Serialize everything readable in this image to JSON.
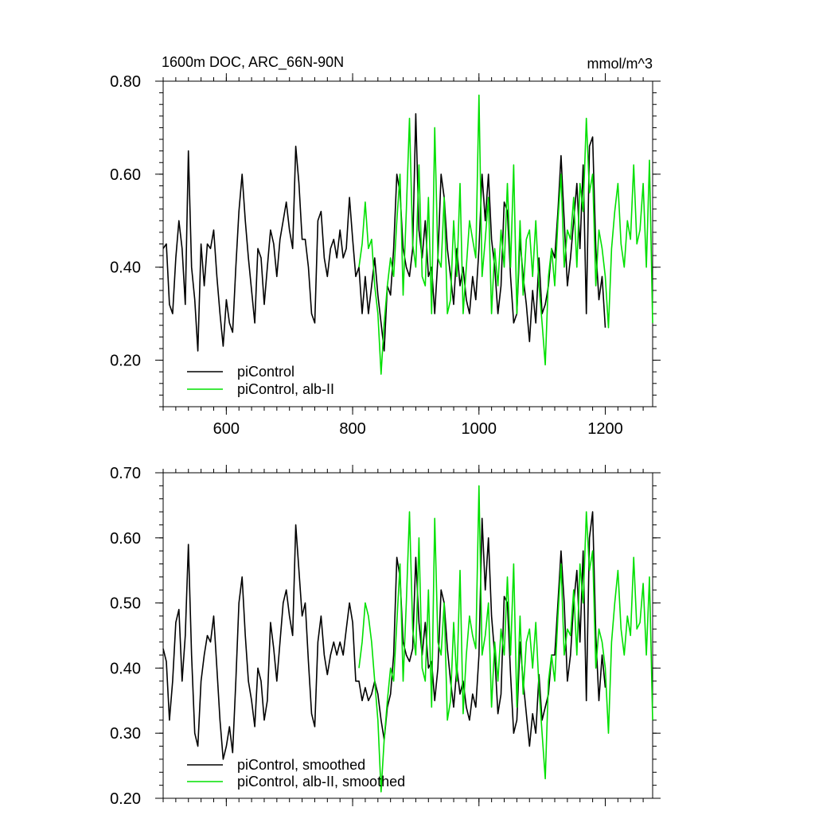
{
  "colors": {
    "series1": "#000000",
    "series2": "#00e000"
  },
  "chart_data": [
    {
      "type": "line",
      "title": "1600m DOC, ARC_66N-90N",
      "units": "mmol/m^3",
      "xlim": [
        500,
        1275
      ],
      "ylim": [
        0.1,
        0.8
      ],
      "xticks": [
        600,
        800,
        1000,
        1200
      ],
      "xtick_labels": [
        "600",
        "800",
        "1000",
        "1200"
      ],
      "yticks": [
        0.2,
        0.4,
        0.6,
        0.8
      ],
      "ytick_labels": [
        "0.20",
        "0.40",
        "0.60",
        "0.80"
      ],
      "legend_position": "bottom-left",
      "series": [
        {
          "name": "piControl",
          "color": "#000000",
          "x": [
            500,
            505,
            510,
            515,
            520,
            525,
            530,
            535,
            540,
            545,
            550,
            555,
            560,
            565,
            570,
            575,
            580,
            585,
            590,
            595,
            600,
            605,
            610,
            615,
            620,
            625,
            630,
            635,
            640,
            645,
            650,
            655,
            660,
            665,
            670,
            675,
            680,
            685,
            690,
            695,
            700,
            705,
            710,
            715,
            720,
            725,
            730,
            735,
            740,
            745,
            750,
            755,
            760,
            765,
            770,
            775,
            780,
            785,
            790,
            795,
            800,
            805,
            810,
            815,
            820,
            825,
            830,
            835,
            840,
            845,
            850,
            855,
            860,
            865,
            870,
            875,
            880,
            885,
            890,
            895,
            900,
            905,
            910,
            915,
            920,
            925,
            930,
            935,
            940,
            945,
            950,
            955,
            960,
            965,
            970,
            975,
            980,
            985,
            990,
            995,
            1000,
            1005,
            1010,
            1015,
            1020,
            1025,
            1030,
            1035,
            1040,
            1045,
            1050,
            1055,
            1060,
            1065,
            1070,
            1075,
            1080,
            1085,
            1090,
            1095,
            1100,
            1105,
            1110,
            1115,
            1120,
            1125,
            1130,
            1135,
            1140,
            1145,
            1150,
            1155,
            1160,
            1165,
            1170,
            1175,
            1180,
            1185,
            1190,
            1195,
            1200
          ],
          "y": [
            0.44,
            0.45,
            0.32,
            0.3,
            0.42,
            0.5,
            0.44,
            0.32,
            0.65,
            0.4,
            0.33,
            0.22,
            0.45,
            0.36,
            0.45,
            0.44,
            0.48,
            0.38,
            0.3,
            0.23,
            0.33,
            0.28,
            0.26,
            0.4,
            0.52,
            0.6,
            0.5,
            0.42,
            0.35,
            0.28,
            0.44,
            0.42,
            0.32,
            0.4,
            0.48,
            0.45,
            0.38,
            0.46,
            0.5,
            0.54,
            0.48,
            0.44,
            0.66,
            0.58,
            0.46,
            0.46,
            0.4,
            0.3,
            0.28,
            0.5,
            0.52,
            0.42,
            0.38,
            0.44,
            0.46,
            0.42,
            0.48,
            0.42,
            0.44,
            0.55,
            0.46,
            0.38,
            0.4,
            0.3,
            0.38,
            0.3,
            0.36,
            0.42,
            0.34,
            0.28,
            0.22,
            0.36,
            0.34,
            0.44,
            0.6,
            0.56,
            0.44,
            0.4,
            0.38,
            0.44,
            0.73,
            0.48,
            0.42,
            0.5,
            0.38,
            0.4,
            0.3,
            0.42,
            0.6,
            0.55,
            0.44,
            0.38,
            0.32,
            0.44,
            0.36,
            0.4,
            0.33,
            0.3,
            0.38,
            0.33,
            0.44,
            0.6,
            0.5,
            0.6,
            0.46,
            0.4,
            0.3,
            0.36,
            0.54,
            0.52,
            0.38,
            0.28,
            0.3,
            0.46,
            0.38,
            0.32,
            0.24,
            0.35,
            0.28,
            0.42,
            0.3,
            0.32,
            0.36,
            0.44,
            0.42,
            0.52,
            0.64,
            0.5,
            0.36,
            0.42,
            0.5,
            0.58,
            0.44,
            0.62,
            0.3,
            0.66,
            0.68,
            0.44,
            0.33,
            0.38,
            0.27
          ]
        },
        {
          "name": "piControl, alb-II",
          "color": "#00e000",
          "x": [
            810,
            815,
            820,
            825,
            830,
            835,
            840,
            845,
            850,
            855,
            860,
            865,
            870,
            875,
            880,
            885,
            890,
            895,
            900,
            905,
            910,
            915,
            920,
            925,
            930,
            935,
            940,
            945,
            950,
            955,
            960,
            965,
            970,
            975,
            980,
            985,
            990,
            995,
            1000,
            1005,
            1010,
            1015,
            1020,
            1025,
            1030,
            1035,
            1040,
            1045,
            1050,
            1055,
            1060,
            1065,
            1070,
            1075,
            1080,
            1085,
            1090,
            1095,
            1100,
            1105,
            1110,
            1115,
            1120,
            1125,
            1130,
            1135,
            1140,
            1145,
            1150,
            1155,
            1160,
            1165,
            1170,
            1175,
            1180,
            1185,
            1190,
            1195,
            1200,
            1205,
            1210,
            1215,
            1220,
            1225,
            1230,
            1235,
            1240,
            1245,
            1250,
            1255,
            1260,
            1265,
            1270,
            1275
          ],
          "y": [
            0.4,
            0.45,
            0.54,
            0.44,
            0.46,
            0.36,
            0.3,
            0.17,
            0.28,
            0.36,
            0.42,
            0.38,
            0.5,
            0.6,
            0.34,
            0.52,
            0.72,
            0.45,
            0.4,
            0.62,
            0.38,
            0.36,
            0.55,
            0.3,
            0.7,
            0.42,
            0.4,
            0.55,
            0.3,
            0.33,
            0.5,
            0.38,
            0.58,
            0.3,
            0.4,
            0.5,
            0.46,
            0.42,
            0.77,
            0.38,
            0.46,
            0.55,
            0.3,
            0.44,
            0.36,
            0.48,
            0.4,
            0.58,
            0.4,
            0.62,
            0.3,
            0.5,
            0.34,
            0.46,
            0.48,
            0.38,
            0.5,
            0.36,
            0.28,
            0.19,
            0.38,
            0.44,
            0.36,
            0.5,
            0.6,
            0.4,
            0.48,
            0.46,
            0.55,
            0.4,
            0.58,
            0.52,
            0.72,
            0.56,
            0.6,
            0.36,
            0.48,
            0.44,
            0.38,
            0.27,
            0.44,
            0.52,
            0.58,
            0.45,
            0.4,
            0.5,
            0.46,
            0.62,
            0.45,
            0.48,
            0.58,
            0.4,
            0.63,
            0.28
          ]
        }
      ]
    },
    {
      "type": "line",
      "title": "",
      "units": "",
      "xlim": [
        500,
        1275
      ],
      "ylim": [
        0.2,
        0.7
      ],
      "xticks": [
        600,
        800,
        1000,
        1200
      ],
      "xtick_labels": [
        "",
        "",
        "",
        ""
      ],
      "yticks": [
        0.2,
        0.3,
        0.4,
        0.5,
        0.6,
        0.7
      ],
      "ytick_labels": [
        "0.20",
        "0.30",
        "0.40",
        "0.50",
        "0.60",
        "0.70"
      ],
      "legend_position": "bottom-left",
      "series": [
        {
          "name": "piControl, smoothed",
          "color": "#000000",
          "x": [
            500,
            505,
            510,
            515,
            520,
            525,
            530,
            535,
            540,
            545,
            550,
            555,
            560,
            565,
            570,
            575,
            580,
            585,
            590,
            595,
            600,
            605,
            610,
            615,
            620,
            625,
            630,
            635,
            640,
            645,
            650,
            655,
            660,
            665,
            670,
            675,
            680,
            685,
            690,
            695,
            700,
            705,
            710,
            715,
            720,
            725,
            730,
            735,
            740,
            745,
            750,
            755,
            760,
            765,
            770,
            775,
            780,
            785,
            790,
            795,
            800,
            805,
            810,
            815,
            820,
            825,
            830,
            835,
            840,
            845,
            850,
            855,
            860,
            865,
            870,
            875,
            880,
            885,
            890,
            895,
            900,
            905,
            910,
            915,
            920,
            925,
            930,
            935,
            940,
            945,
            950,
            955,
            960,
            965,
            970,
            975,
            980,
            985,
            990,
            995,
            1000,
            1005,
            1010,
            1015,
            1020,
            1025,
            1030,
            1035,
            1040,
            1045,
            1050,
            1055,
            1060,
            1065,
            1070,
            1075,
            1080,
            1085,
            1090,
            1095,
            1100,
            1105,
            1110,
            1115,
            1120,
            1125,
            1130,
            1135,
            1140,
            1145,
            1150,
            1155,
            1160,
            1165,
            1170,
            1175,
            1180,
            1185,
            1190,
            1195,
            1200
          ],
          "y": [
            0.43,
            0.41,
            0.32,
            0.38,
            0.47,
            0.49,
            0.38,
            0.45,
            0.59,
            0.42,
            0.3,
            0.28,
            0.38,
            0.42,
            0.45,
            0.44,
            0.48,
            0.4,
            0.32,
            0.26,
            0.28,
            0.31,
            0.27,
            0.38,
            0.5,
            0.54,
            0.45,
            0.38,
            0.35,
            0.31,
            0.4,
            0.38,
            0.32,
            0.35,
            0.47,
            0.43,
            0.38,
            0.44,
            0.5,
            0.52,
            0.48,
            0.45,
            0.62,
            0.55,
            0.48,
            0.5,
            0.41,
            0.33,
            0.31,
            0.44,
            0.48,
            0.42,
            0.39,
            0.42,
            0.44,
            0.42,
            0.44,
            0.42,
            0.46,
            0.5,
            0.47,
            0.38,
            0.38,
            0.35,
            0.37,
            0.35,
            0.36,
            0.38,
            0.36,
            0.32,
            0.29,
            0.34,
            0.36,
            0.42,
            0.57,
            0.54,
            0.44,
            0.42,
            0.41,
            0.43,
            0.57,
            0.47,
            0.42,
            0.47,
            0.4,
            0.41,
            0.35,
            0.4,
            0.52,
            0.5,
            0.43,
            0.38,
            0.34,
            0.4,
            0.36,
            0.38,
            0.34,
            0.32,
            0.36,
            0.34,
            0.42,
            0.63,
            0.52,
            0.6,
            0.48,
            0.42,
            0.33,
            0.36,
            0.51,
            0.5,
            0.39,
            0.3,
            0.32,
            0.44,
            0.38,
            0.33,
            0.28,
            0.33,
            0.3,
            0.39,
            0.32,
            0.34,
            0.36,
            0.42,
            0.42,
            0.5,
            0.58,
            0.5,
            0.38,
            0.42,
            0.5,
            0.55,
            0.44,
            0.58,
            0.35,
            0.6,
            0.64,
            0.45,
            0.35,
            0.42,
            0.37
          ]
        },
        {
          "name": "piControl, alb-II, smoothed",
          "color": "#00e000",
          "x": [
            810,
            815,
            820,
            825,
            830,
            835,
            840,
            845,
            850,
            855,
            860,
            865,
            870,
            875,
            880,
            885,
            890,
            895,
            900,
            905,
            910,
            915,
            920,
            925,
            930,
            935,
            940,
            945,
            950,
            955,
            960,
            965,
            970,
            975,
            980,
            985,
            990,
            995,
            1000,
            1005,
            1010,
            1015,
            1020,
            1025,
            1030,
            1035,
            1040,
            1045,
            1050,
            1055,
            1060,
            1065,
            1070,
            1075,
            1080,
            1085,
            1090,
            1095,
            1100,
            1105,
            1110,
            1115,
            1120,
            1125,
            1130,
            1135,
            1140,
            1145,
            1150,
            1155,
            1160,
            1165,
            1170,
            1175,
            1180,
            1185,
            1190,
            1195,
            1200,
            1205,
            1210,
            1215,
            1220,
            1225,
            1230,
            1235,
            1240,
            1245,
            1250,
            1255,
            1260,
            1265,
            1270,
            1275
          ],
          "y": [
            0.4,
            0.44,
            0.5,
            0.48,
            0.44,
            0.38,
            0.32,
            0.21,
            0.29,
            0.35,
            0.4,
            0.38,
            0.47,
            0.56,
            0.38,
            0.5,
            0.64,
            0.46,
            0.42,
            0.6,
            0.4,
            0.38,
            0.52,
            0.34,
            0.63,
            0.44,
            0.42,
            0.5,
            0.32,
            0.35,
            0.47,
            0.38,
            0.55,
            0.33,
            0.42,
            0.48,
            0.45,
            0.43,
            0.68,
            0.42,
            0.45,
            0.5,
            0.34,
            0.44,
            0.38,
            0.46,
            0.42,
            0.54,
            0.42,
            0.56,
            0.34,
            0.48,
            0.36,
            0.44,
            0.46,
            0.4,
            0.47,
            0.37,
            0.3,
            0.23,
            0.38,
            0.42,
            0.38,
            0.48,
            0.56,
            0.42,
            0.46,
            0.45,
            0.52,
            0.42,
            0.56,
            0.5,
            0.64,
            0.55,
            0.58,
            0.4,
            0.46,
            0.44,
            0.4,
            0.3,
            0.44,
            0.5,
            0.55,
            0.46,
            0.42,
            0.48,
            0.45,
            0.57,
            0.46,
            0.47,
            0.53,
            0.42,
            0.54,
            0.32
          ]
        }
      ]
    }
  ]
}
